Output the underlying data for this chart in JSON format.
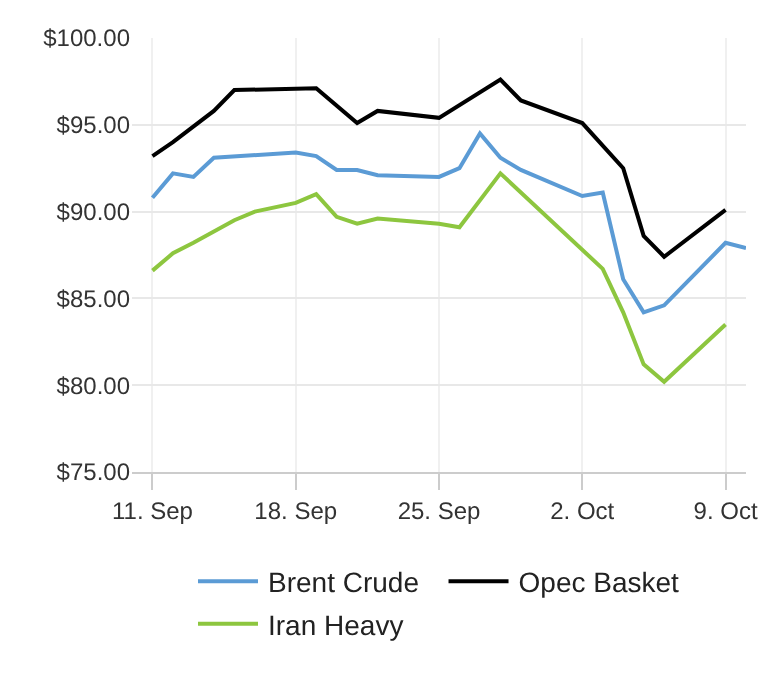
{
  "chart_data": {
    "type": "line",
    "x": [
      "--09-11",
      "--09-12",
      "--09-14",
      "--09-15",
      "--09-19",
      "--09-21",
      "--09-22",
      "--09-25",
      "--09-28",
      "--09-29",
      "--10-02",
      "--10-04",
      "--10-05",
      "--10-06",
      "--10-09"
    ],
    "series": [
      {
        "name": "Brent Crude",
        "color": "#5b9bd5",
        "x": [
          "--09-11",
          "--09-12",
          "--09-13",
          "--09-14",
          "--09-18",
          "--09-19",
          "--09-20",
          "--09-21",
          "--09-22",
          "--09-25",
          "--09-26",
          "--09-27",
          "--09-28",
          "--09-29",
          "--10-02",
          "--10-03",
          "--10-04",
          "--10-05",
          "--10-06",
          "--10-09",
          "--10-10"
        ],
        "values": [
          90.8,
          92.2,
          92.0,
          93.1,
          93.4,
          93.2,
          92.4,
          92.4,
          92.1,
          92.0,
          92.5,
          94.5,
          93.1,
          92.4,
          90.9,
          91.1,
          86.1,
          84.2,
          84.6,
          88.2,
          87.9
        ]
      },
      {
        "name": "Opec Basket",
        "color": "#000000",
        "values": [
          93.2,
          94.0,
          95.8,
          97.0,
          97.1,
          95.1,
          95.8,
          95.4,
          97.6,
          96.4,
          95.1,
          92.5,
          88.6,
          87.4,
          90.1
        ]
      },
      {
        "name": "Iran Heavy",
        "color": "#8dc63f",
        "x": [
          "--09-11",
          "--09-12",
          "--09-13",
          "--09-15",
          "--09-16",
          "--09-18",
          "--09-19",
          "--09-20",
          "--09-21",
          "--09-22",
          "--09-25",
          "--09-26",
          "--09-28",
          "--10-03",
          "--10-04",
          "--10-05",
          "--10-06",
          "--10-09"
        ],
        "values": [
          86.6,
          87.6,
          88.2,
          89.5,
          90.0,
          90.5,
          91.0,
          89.7,
          89.3,
          89.6,
          89.3,
          89.1,
          92.2,
          86.7,
          84.2,
          81.2,
          80.2,
          83.5
        ]
      }
    ],
    "xlim": [
      "--09-10",
      "--10-10"
    ],
    "xticks": [
      {
        "value": "--09-11",
        "label": "11. Sep"
      },
      {
        "value": "--09-18",
        "label": "18. Sep"
      },
      {
        "value": "--09-25",
        "label": "25. Sep"
      },
      {
        "value": "--10-02",
        "label": "2. Oct"
      },
      {
        "value": "--10-09",
        "label": "9. Oct"
      }
    ],
    "ylim": [
      75,
      100
    ],
    "yticks": [
      {
        "value": 75,
        "label": "$75.00"
      },
      {
        "value": 80,
        "label": "$80.00"
      },
      {
        "value": 85,
        "label": "$85.00"
      },
      {
        "value": 90,
        "label": "$90.00"
      },
      {
        "value": 95,
        "label": "$95.00"
      },
      {
        "value": 100,
        "label": "$100.00"
      }
    ],
    "grid": true,
    "legend": "bottom",
    "marker": "none",
    "line_style": "solid"
  }
}
